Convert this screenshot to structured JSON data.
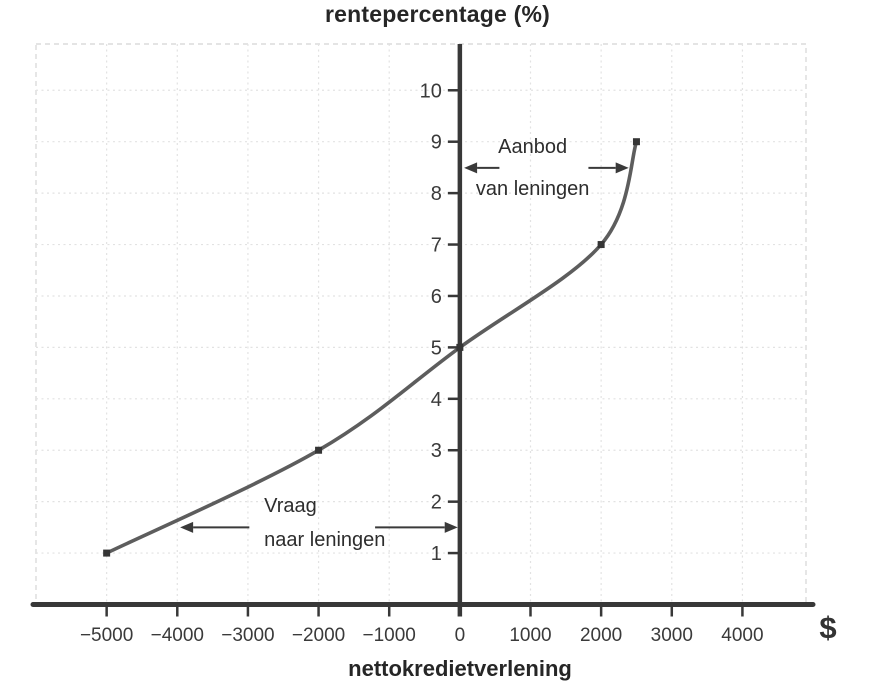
{
  "chart_data": {
    "type": "line",
    "title": "rentepercentage (%)",
    "xlabel": "nettokredietverlening",
    "x_unit_label": "$",
    "xlim": [
      -6000,
      4900
    ],
    "ylim": [
      0,
      10.9
    ],
    "xticks": [
      -5000,
      -4000,
      -3000,
      -2000,
      -1000,
      0,
      1000,
      2000,
      3000,
      4000
    ],
    "yticks": [
      1,
      2,
      3,
      4,
      5,
      6,
      7,
      8,
      9,
      10
    ],
    "grid": true,
    "legend": "none",
    "series": [
      {
        "name": "net-credit-curve",
        "points": [
          [
            -5000,
            1
          ],
          [
            -2000,
            3
          ],
          [
            0,
            5
          ],
          [
            2000,
            7
          ],
          [
            2500,
            9
          ]
        ],
        "smooth": true,
        "marker": "square",
        "color": "#5d5d5d",
        "marker_color": "#353535"
      }
    ],
    "annotations": [
      {
        "name": "aanbod-van-leningen",
        "lines": [
          "Aanbod",
          "van leningen"
        ],
        "anchor": [
          1030,
          8.49
        ],
        "align": "center",
        "arrows": [
          {
            "from": [
              560,
              8.49
            ],
            "to": [
              60,
              8.49
            ]
          },
          {
            "from": [
              1820,
              8.49
            ],
            "to": [
              2390,
              8.49
            ]
          }
        ]
      },
      {
        "name": "vraag-naar-leningen",
        "lines": [
          "Vraag",
          "naar leningen"
        ],
        "anchor": [
          -2770,
          1.58
        ],
        "align": "left",
        "arrows": [
          {
            "from": [
              -2980,
              1.5
            ],
            "to": [
              -3960,
              1.5
            ]
          },
          {
            "from": [
              -1200,
              1.5
            ],
            "to": [
              -30,
              1.5
            ]
          }
        ]
      }
    ],
    "colors": {
      "axis": "#383838",
      "curve": "#5d5d5d",
      "marker": "#353535",
      "grid": "#e2e2e2",
      "border": "#dcdcdc",
      "text": "#3a3a3a",
      "arrow": "#3a3a3a"
    }
  }
}
